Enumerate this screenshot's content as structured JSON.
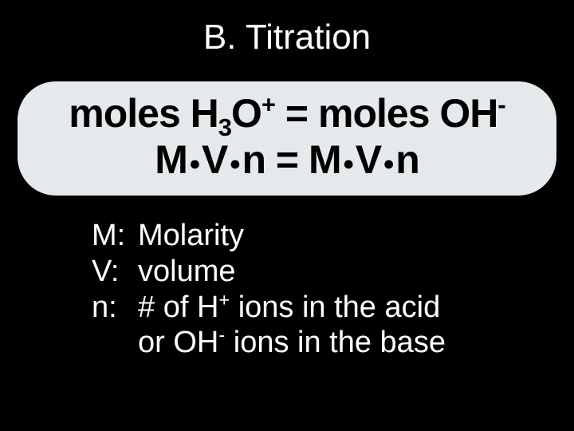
{
  "colors": {
    "background": "#000000",
    "text_light": "#ffffff",
    "box_fill": "#e4e9ec",
    "box_border": "#000000",
    "box_text": "#000000"
  },
  "typography": {
    "title_fontsize": 44,
    "formula_fontsize": 50,
    "definitions_fontsize": 38,
    "font_family": "Arial"
  },
  "title": "B. Titration",
  "formula": {
    "line1_plain": "moles H3O+ = moles OH-",
    "line2_plain": "M·V·n = M·V·n",
    "species_left": "H3O+",
    "species_right": "OH-",
    "terms": [
      "M",
      "V",
      "n"
    ]
  },
  "definitions": {
    "M": "Molarity",
    "V": "volume",
    "n_line1": "# of H+ ions in the acid",
    "n_line2": "or OH- ions in the base"
  }
}
